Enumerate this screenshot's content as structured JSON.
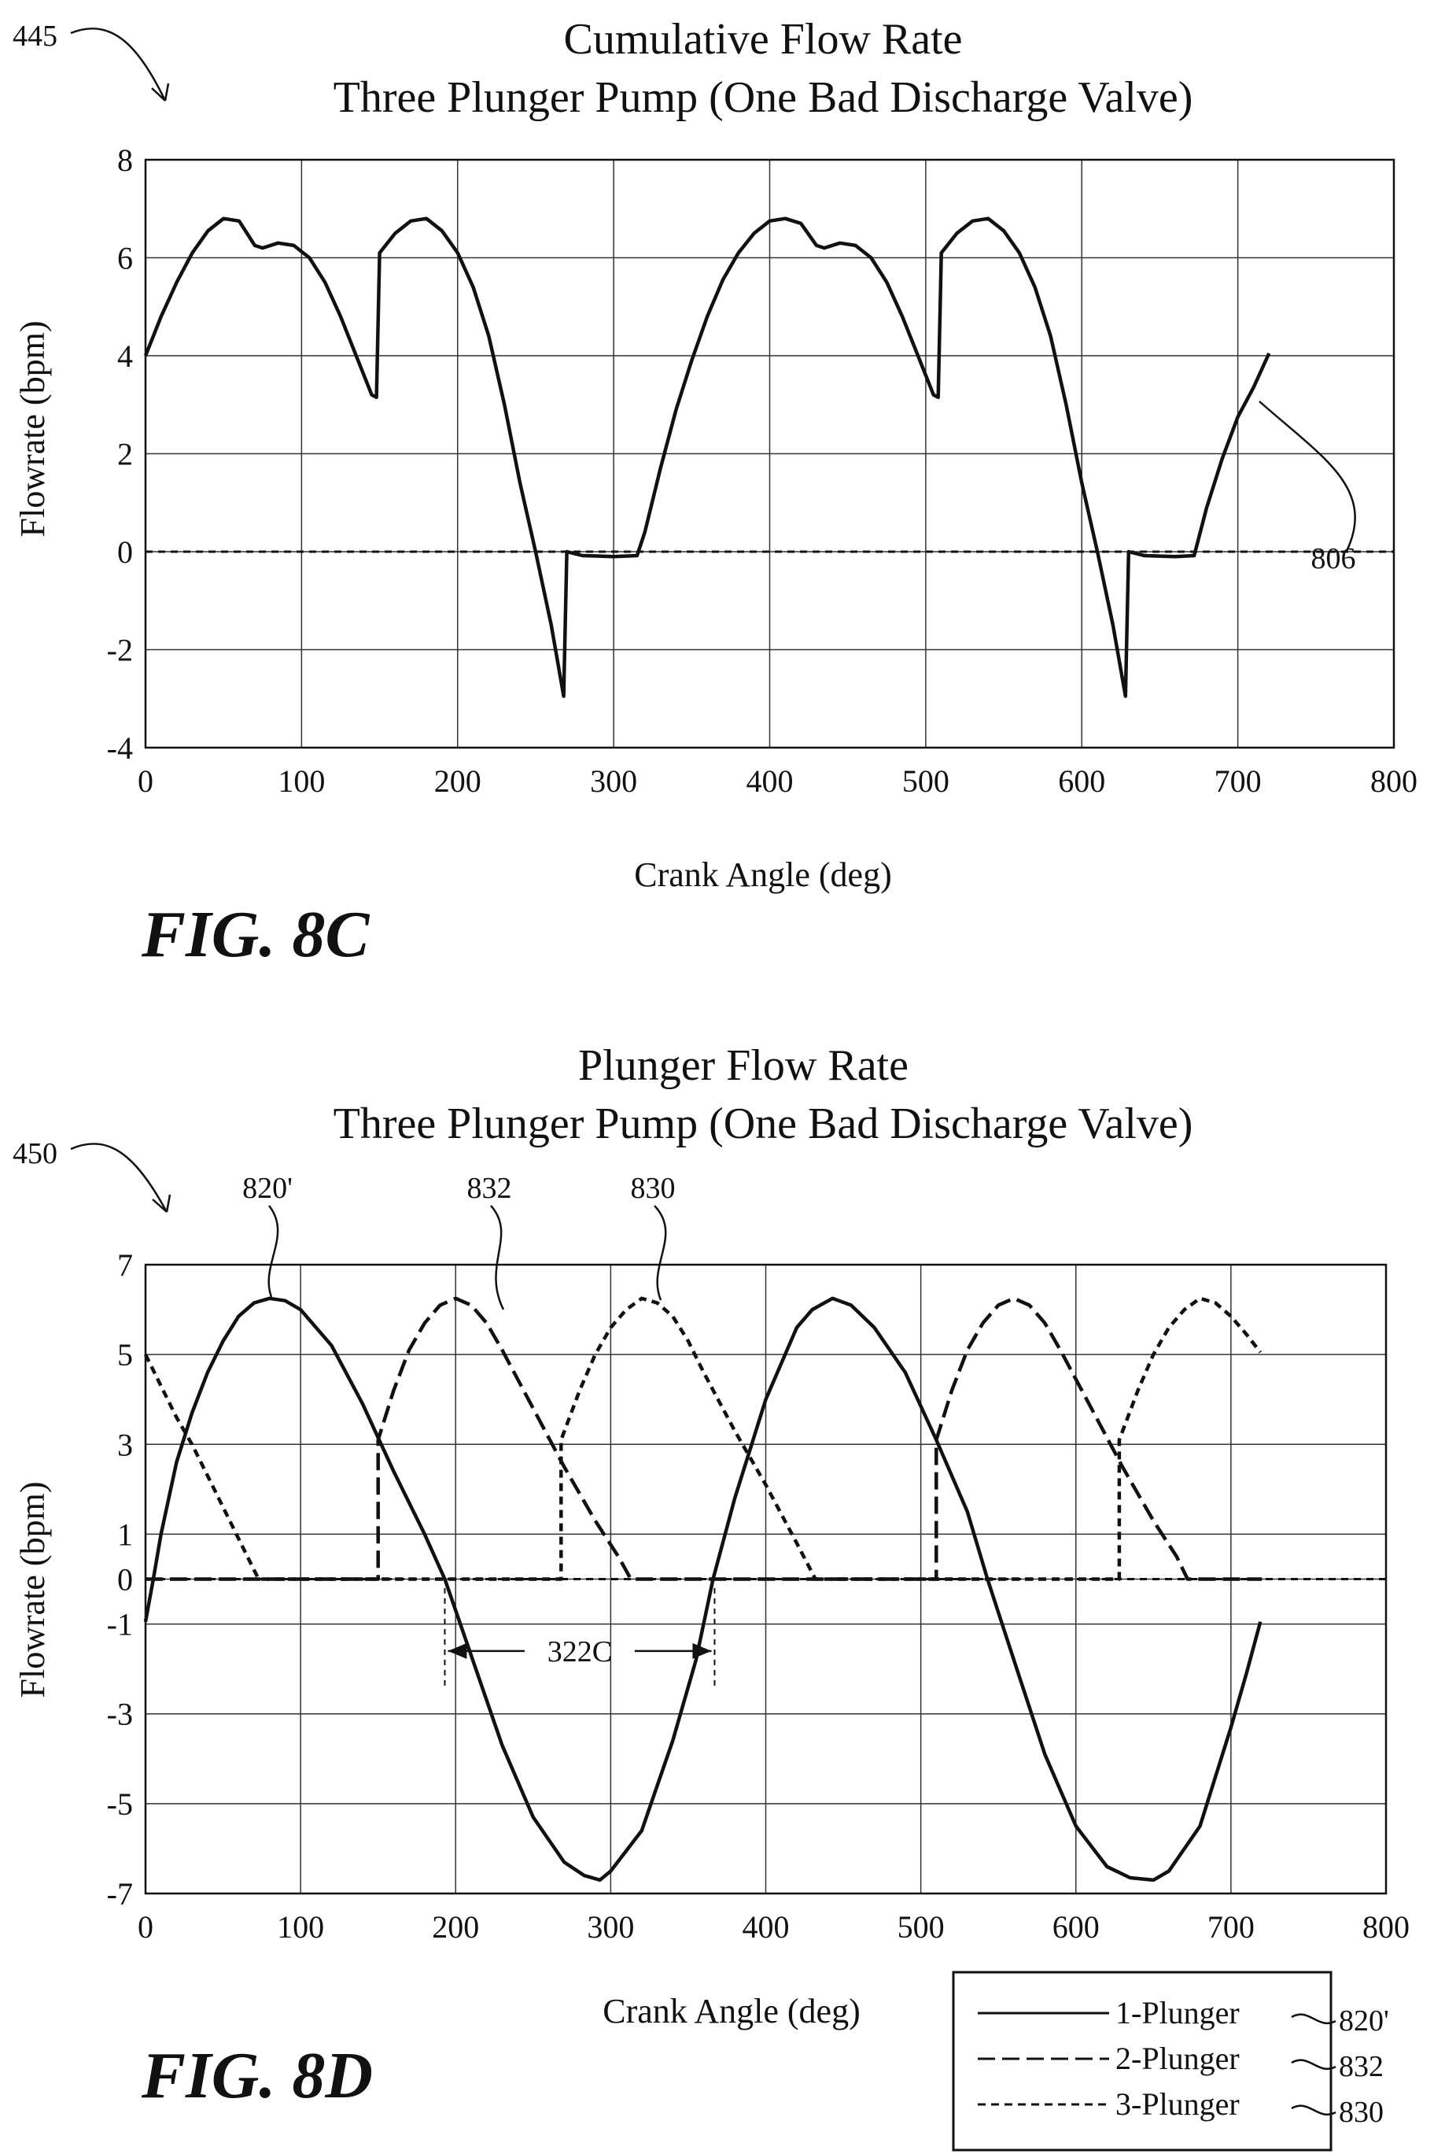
{
  "chart_data": [
    {
      "type": "line",
      "ref_numeral": "445",
      "title": "Cumulative Flow Rate",
      "subtitle": "Three Plunger Pump (One Bad Discharge Valve)",
      "xlabel": "Crank Angle (deg)",
      "ylabel": "Flowrate (bpm)",
      "xlim": [
        0,
        800
      ],
      "ylim": [
        -4,
        8
      ],
      "xticks": [
        "0",
        "100",
        "200",
        "300",
        "400",
        "500",
        "600",
        "700",
        "800"
      ],
      "yticks": [
        "8",
        "6",
        "4",
        "2",
        "0",
        "-2",
        "-4"
      ],
      "grid": true,
      "figure_label": "FIG. 8C",
      "annotations": [
        {
          "text": "806",
          "target": "cumulative flow line"
        }
      ],
      "series": [
        {
          "style": "solid",
          "points": [
            [
              0,
              4.0
            ],
            [
              10,
              4.8
            ],
            [
              20,
              5.5
            ],
            [
              30,
              6.1
            ],
            [
              40,
              6.55
            ],
            [
              50,
              6.8
            ],
            [
              60,
              6.75
            ],
            [
              70,
              6.25
            ],
            [
              75,
              6.2
            ],
            [
              85,
              6.3
            ],
            [
              95,
              6.25
            ],
            [
              105,
              6.0
            ],
            [
              115,
              5.5
            ],
            [
              125,
              4.8
            ],
            [
              135,
              4.0
            ],
            [
              145,
              3.2
            ],
            [
              148,
              3.15
            ],
            [
              150,
              6.1
            ],
            [
              160,
              6.5
            ],
            [
              170,
              6.75
            ],
            [
              180,
              6.8
            ],
            [
              190,
              6.55
            ],
            [
              200,
              6.1
            ],
            [
              210,
              5.4
            ],
            [
              220,
              4.4
            ],
            [
              230,
              3.0
            ],
            [
              240,
              1.4
            ],
            [
              250,
              0.0
            ],
            [
              260,
              -1.5
            ],
            [
              268,
              -2.95
            ],
            [
              270,
              0.0
            ],
            [
              280,
              -0.08
            ],
            [
              300,
              -0.1
            ],
            [
              315,
              -0.08
            ],
            [
              320,
              0.4
            ],
            [
              330,
              1.7
            ],
            [
              340,
              2.9
            ],
            [
              350,
              3.9
            ],
            [
              360,
              4.8
            ],
            [
              370,
              5.55
            ],
            [
              380,
              6.1
            ],
            [
              390,
              6.5
            ],
            [
              400,
              6.75
            ],
            [
              410,
              6.8
            ],
            [
              420,
              6.7
            ],
            [
              430,
              6.25
            ],
            [
              435,
              6.2
            ],
            [
              445,
              6.3
            ],
            [
              455,
              6.25
            ],
            [
              465,
              6.0
            ],
            [
              475,
              5.5
            ],
            [
              485,
              4.8
            ],
            [
              495,
              4.0
            ],
            [
              505,
              3.2
            ],
            [
              508,
              3.15
            ],
            [
              510,
              6.1
            ],
            [
              520,
              6.5
            ],
            [
              530,
              6.75
            ],
            [
              540,
              6.8
            ],
            [
              550,
              6.55
            ],
            [
              560,
              6.1
            ],
            [
              570,
              5.4
            ],
            [
              580,
              4.4
            ],
            [
              590,
              3.0
            ],
            [
              600,
              1.4
            ],
            [
              610,
              0.0
            ],
            [
              620,
              -1.5
            ],
            [
              628,
              -2.95
            ],
            [
              630,
              0.0
            ],
            [
              640,
              -0.08
            ],
            [
              660,
              -0.1
            ],
            [
              672,
              -0.08
            ],
            [
              680,
              0.9
            ],
            [
              690,
              1.9
            ],
            [
              700,
              2.75
            ],
            [
              710,
              3.35
            ],
            [
              720,
              4.05
            ]
          ]
        },
        {
          "style": "dashed",
          "points": [
            [
              0,
              0
            ],
            [
              800,
              0
            ]
          ]
        }
      ]
    },
    {
      "type": "line",
      "ref_numeral": "450",
      "title": "Plunger Flow Rate",
      "subtitle": "Three Plunger Pump (One Bad Discharge Valve)",
      "xlabel": "Crank Angle (deg)",
      "ylabel": "Flowrate (bpm)",
      "xlim": [
        0,
        800
      ],
      "ylim": [
        -7,
        7
      ],
      "xticks": [
        "0",
        "100",
        "200",
        "300",
        "400",
        "500",
        "600",
        "700",
        "800"
      ],
      "yticks": [
        "7",
        "5",
        "3",
        "1",
        "0",
        "-1",
        "-3",
        "-5",
        "-7"
      ],
      "grid": true,
      "figure_label": "FIG. 8D",
      "legend_position": "bottom-right",
      "annotations": [
        {
          "text": "820'",
          "target": "1-Plunger"
        },
        {
          "text": "832",
          "target": "2-Plunger"
        },
        {
          "text": "830",
          "target": "3-Plunger"
        },
        {
          "text": "322C",
          "x_range": [
            193,
            367
          ]
        }
      ],
      "series": [
        {
          "name": "1-Plunger",
          "ref": "820'",
          "style": "solid",
          "points": [
            [
              0,
              -0.95
            ],
            [
              5,
              0.0
            ],
            [
              10,
              1.0
            ],
            [
              20,
              2.6
            ],
            [
              30,
              3.7
            ],
            [
              40,
              4.6
            ],
            [
              50,
              5.3
            ],
            [
              60,
              5.85
            ],
            [
              70,
              6.15
            ],
            [
              80,
              6.25
            ],
            [
              90,
              6.2
            ],
            [
              100,
              6.0
            ],
            [
              120,
              5.2
            ],
            [
              140,
              3.9
            ],
            [
              160,
              2.4
            ],
            [
              180,
              1.0
            ],
            [
              193,
              0.0
            ],
            [
              210,
              -1.7
            ],
            [
              230,
              -3.7
            ],
            [
              250,
              -5.3
            ],
            [
              270,
              -6.3
            ],
            [
              283,
              -6.6
            ],
            [
              293,
              -6.7
            ],
            [
              300,
              -6.5
            ],
            [
              320,
              -5.6
            ],
            [
              340,
              -3.6
            ],
            [
              355,
              -1.8
            ],
            [
              366,
              0.0
            ],
            [
              380,
              1.8
            ],
            [
              400,
              4.0
            ],
            [
              420,
              5.6
            ],
            [
              430,
              6.0
            ],
            [
              443,
              6.25
            ],
            [
              455,
              6.1
            ],
            [
              470,
              5.6
            ],
            [
              490,
              4.6
            ],
            [
              510,
              3.1
            ],
            [
              530,
              1.5
            ],
            [
              543,
              0.0
            ],
            [
              560,
              -1.8
            ],
            [
              580,
              -3.9
            ],
            [
              600,
              -5.5
            ],
            [
              620,
              -6.4
            ],
            [
              635,
              -6.65
            ],
            [
              650,
              -6.7
            ],
            [
              660,
              -6.5
            ],
            [
              680,
              -5.5
            ],
            [
              700,
              -3.3
            ],
            [
              710,
              -2.1
            ],
            [
              719,
              -0.95
            ]
          ]
        },
        {
          "name": "2-Plunger",
          "ref": "832",
          "style": "long-dash",
          "points": [
            [
              0,
              0
            ],
            [
              150,
              0
            ],
            [
              150,
              3.1
            ],
            [
              160,
              4.2
            ],
            [
              170,
              5.1
            ],
            [
              180,
              5.7
            ],
            [
              190,
              6.1
            ],
            [
              200,
              6.25
            ],
            [
              210,
              6.1
            ],
            [
              220,
              5.7
            ],
            [
              230,
              5.1
            ],
            [
              250,
              3.8
            ],
            [
              270,
              2.5
            ],
            [
              290,
              1.3
            ],
            [
              305,
              0.5
            ],
            [
              313,
              0.0
            ],
            [
              510,
              0
            ],
            [
              510,
              3.1
            ],
            [
              520,
              4.2
            ],
            [
              530,
              5.1
            ],
            [
              540,
              5.7
            ],
            [
              550,
              6.1
            ],
            [
              560,
              6.25
            ],
            [
              570,
              6.1
            ],
            [
              580,
              5.7
            ],
            [
              590,
              5.1
            ],
            [
              610,
              3.8
            ],
            [
              630,
              2.5
            ],
            [
              650,
              1.3
            ],
            [
              665,
              0.5
            ],
            [
              672,
              0.0
            ],
            [
              720,
              0
            ]
          ]
        },
        {
          "name": "3-Plunger",
          "ref": "830",
          "style": "short-dash",
          "points": [
            [
              0,
              5.0
            ],
            [
              10,
              4.3
            ],
            [
              20,
              3.6
            ],
            [
              30,
              3.0
            ],
            [
              40,
              2.3
            ],
            [
              50,
              1.6
            ],
            [
              60,
              0.9
            ],
            [
              70,
              0.2
            ],
            [
              73,
              0.0
            ],
            [
              268,
              0
            ],
            [
              268,
              3.1
            ],
            [
              280,
              4.2
            ],
            [
              290,
              5.0
            ],
            [
              300,
              5.6
            ],
            [
              310,
              6.0
            ],
            [
              320,
              6.25
            ],
            [
              330,
              6.15
            ],
            [
              340,
              5.85
            ],
            [
              350,
              5.3
            ],
            [
              360,
              4.6
            ],
            [
              380,
              3.3
            ],
            [
              400,
              2.1
            ],
            [
              420,
              0.8
            ],
            [
              432,
              0.0
            ],
            [
              628,
              0
            ],
            [
              628,
              3.1
            ],
            [
              640,
              4.2
            ],
            [
              650,
              5.0
            ],
            [
              660,
              5.6
            ],
            [
              670,
              6.0
            ],
            [
              680,
              6.25
            ],
            [
              690,
              6.15
            ],
            [
              700,
              5.85
            ],
            [
              710,
              5.45
            ],
            [
              719,
              5.05
            ]
          ]
        },
        {
          "style": "dashed",
          "points": [
            [
              0,
              0
            ],
            [
              800,
              0
            ]
          ]
        }
      ]
    }
  ]
}
